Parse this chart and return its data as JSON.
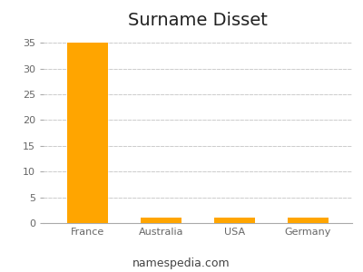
{
  "title": "Surname Disset",
  "categories": [
    "France",
    "Australia",
    "USA",
    "Germany"
  ],
  "values": [
    35,
    1,
    1,
    1
  ],
  "bar_color": "#FFA500",
  "background_color": "#ffffff",
  "ylim": [
    0,
    37
  ],
  "yticks": [
    0,
    5,
    10,
    15,
    20,
    25,
    30,
    35
  ],
  "grid_color": "#cccccc",
  "title_fontsize": 14,
  "tick_fontsize": 8,
  "footer_text": "namespedia.com",
  "footer_fontsize": 9,
  "bar_width": 0.55
}
